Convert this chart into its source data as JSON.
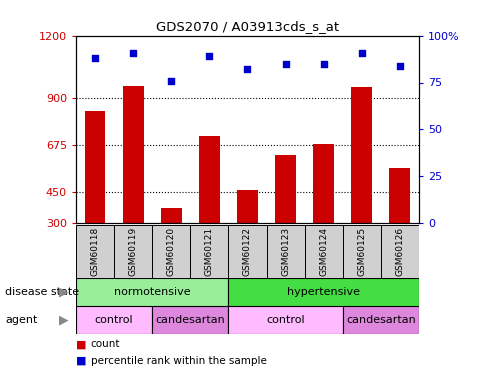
{
  "title": "GDS2070 / A03913cds_s_at",
  "samples": [
    "GSM60118",
    "GSM60119",
    "GSM60120",
    "GSM60121",
    "GSM60122",
    "GSM60123",
    "GSM60124",
    "GSM60125",
    "GSM60126"
  ],
  "counts": [
    840,
    960,
    375,
    720,
    460,
    625,
    680,
    955,
    565
  ],
  "percentile_ranks": [
    88,
    91,
    76,
    89,
    82,
    85,
    85,
    91,
    84
  ],
  "ylim_left": [
    300,
    1200
  ],
  "ylim_right": [
    0,
    100
  ],
  "yticks_left": [
    300,
    450,
    675,
    900,
    1200
  ],
  "yticks_right": [
    0,
    25,
    50,
    75,
    100
  ],
  "bar_color": "#cc0000",
  "dot_color": "#0000cc",
  "disease_state_color_norm": "#99ee99",
  "disease_state_color_hyper": "#44dd44",
  "agent_color": "#dd88dd",
  "tick_color_left": "#cc0000",
  "tick_color_right": "#0000cc",
  "legend_count_color": "#cc0000",
  "legend_pct_color": "#0000cc",
  "sample_box_color": "#d0d0d0",
  "fig_width": 4.9,
  "fig_height": 3.75,
  "fig_dpi": 100
}
